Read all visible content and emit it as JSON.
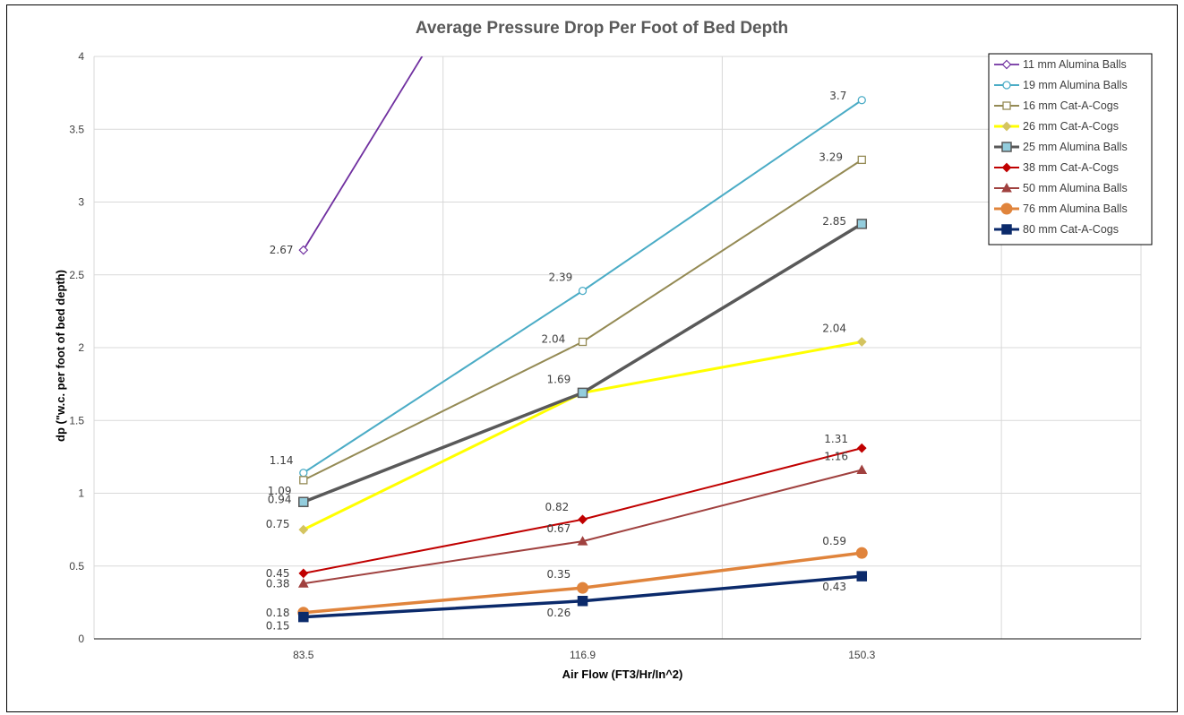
{
  "chart_data": {
    "type": "line",
    "title": "Average Pressure Drop Per Foot of Bed Depth",
    "xlabel": "Air Flow (FT3/Hr/In^2)",
    "ylabel": "dp (\"w.c. per foot of bed depth)",
    "categories": [
      "83.5",
      "116.9",
      "150.3"
    ],
    "ylim": [
      0,
      4
    ],
    "yticks": [
      "0",
      "0.5",
      "1",
      "1.5",
      "2",
      "2.5",
      "3",
      "3.5",
      "4"
    ],
    "grid": true,
    "legend_position": "top-right",
    "series": [
      {
        "name": "11 mm Alumina Balls",
        "color": "#7030A0",
        "marker": "diamond-open",
        "width": 1.8,
        "values": [
          2.67,
          5.8,
          null
        ],
        "labels": [
          "2.67",
          "",
          ""
        ]
      },
      {
        "name": "19 mm Alumina Balls",
        "color": "#4BACC6",
        "marker": "circle-open",
        "width": 2,
        "values": [
          1.14,
          2.39,
          3.7
        ],
        "labels": [
          "1.14",
          "2.39",
          "3.7"
        ]
      },
      {
        "name": "16 mm Cat-A-Cogs",
        "color": "#948A54",
        "marker": "square-open",
        "width": 2,
        "values": [
          1.09,
          2.04,
          3.29
        ],
        "labels": [
          "1.09",
          "2.04",
          "3.29"
        ]
      },
      {
        "name": "26 mm Cat-A-Cogs",
        "color": "#FFFF00",
        "marker": "diamond",
        "markerColor": "#D4C460",
        "width": 3,
        "values": [
          0.75,
          1.69,
          2.04
        ],
        "labels": [
          "0.75",
          "",
          "2.04"
        ]
      },
      {
        "name": "25 mm Alumina Balls",
        "color": "#595959",
        "marker": "square-filled",
        "markerColor": "#93CDDD",
        "width": 3.5,
        "values": [
          0.94,
          1.69,
          2.85
        ],
        "labels": [
          "0.94",
          "1.69",
          "2.85"
        ]
      },
      {
        "name": "38 mm Cat-A-Cogs",
        "color": "#C00000",
        "marker": "diamond",
        "width": 2,
        "values": [
          0.45,
          0.82,
          1.31
        ],
        "labels": [
          "0.45",
          "0.82",
          "1.31"
        ]
      },
      {
        "name": "50 mm Alumina Balls",
        "color": "#A0413F",
        "marker": "triangle",
        "width": 2,
        "values": [
          0.38,
          0.67,
          1.16
        ],
        "labels": [
          "0.38",
          "0.67",
          "1.16"
        ]
      },
      {
        "name": "76 mm Alumina Balls",
        "color": "#E0843C",
        "marker": "circle-filled",
        "width": 3.5,
        "values": [
          0.18,
          0.35,
          0.59
        ],
        "labels": [
          "0.18",
          "0.35",
          "0.59"
        ]
      },
      {
        "name": "80 mm Cat-A-Cogs",
        "color": "#0B2A6B",
        "marker": "square-filled",
        "width": 3.5,
        "values": [
          0.15,
          0.26,
          0.43
        ],
        "labels": [
          "0.15",
          "0.26",
          "0.43"
        ]
      }
    ]
  }
}
